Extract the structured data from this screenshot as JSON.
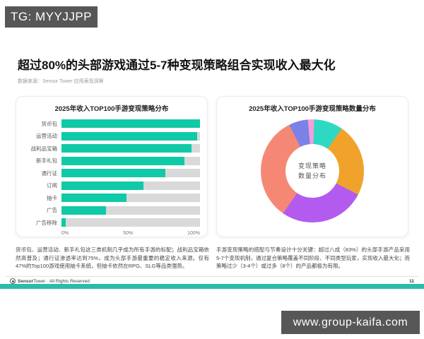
{
  "badges": {
    "top_left": "TG: MYYJJPP",
    "bottom_right": "www.group-kaifa.com"
  },
  "page": {
    "title": "超过80%的头部游戏通过5-7种变现策略组合实现收入最大化",
    "source": "数据来源：Sensor Tower 应用表现洞察",
    "footer": {
      "brand_bold": "Sensor",
      "brand_rest": "Tower",
      "rights": "· All Rights Reserved",
      "page_number": "11"
    }
  },
  "colors": {
    "badge_bg": "#575757",
    "accent_teal_bar": "#2BBBAB"
  },
  "chart_data": [
    {
      "type": "bar",
      "orientation": "horizontal",
      "title": "2025年收入TOP100手游变现策略分布",
      "categories": [
        "货币包",
        "运营活动",
        "战利品宝箱",
        "新手礼包",
        "通行证",
        "订阅",
        "抽卡",
        "广告",
        "广告移除"
      ],
      "values": [
        100,
        98,
        94,
        89,
        75,
        59,
        47,
        32,
        3
      ],
      "unit": "%",
      "xlim": [
        0,
        100
      ],
      "x_ticks": [
        "0%",
        "50%",
        "100%"
      ],
      "bar_color": "#10C9A7",
      "track_color": "#D9D9D9",
      "legend": "none",
      "grid": "off"
    },
    {
      "type": "pie",
      "subtype": "donut",
      "title": "2025年收入TOP100手游变现策略数量分布",
      "center_label_line1": "变现策略",
      "center_label_line2": "数量分布",
      "start_angle_deg": -5,
      "segments": [
        {
          "name": "pink-sliver",
          "value": 2,
          "color": "#F2A0D8"
        },
        {
          "name": "teal",
          "value": 9,
          "color": "#2ED9C3"
        },
        {
          "name": "orange",
          "value": 23,
          "color": "#F0A22B"
        },
        {
          "name": "purple",
          "value": 27,
          "color": "#B35BEE"
        },
        {
          "name": "salmon",
          "value": 33,
          "color": "#F58875"
        },
        {
          "name": "periwinkle-blue",
          "value": 6,
          "color": "#7A82E8"
        }
      ],
      "legend": "none"
    }
  ],
  "captions": {
    "left": "货币包、运营活动、新手礼包这三类机制几乎成为所有手游的标配；战利品宝箱依然高普及；通行证渗透率达到75%，成为头部手游最重要的稳定收入来源。仅有47%的Top100游戏使用抽卡系统，但抽卡依然在RPG、SLG等品类强势。",
    "right": "手游变现策略的搭配与节奏设计十分关键：超过八成（83%）的头部手游产品采用5-7个变现机制，通过复合策略覆盖不同阶段、不同类型玩家，实现收入最大化；而策略过少（3-4个）或过多（8个）的产品都极为有限。"
  }
}
